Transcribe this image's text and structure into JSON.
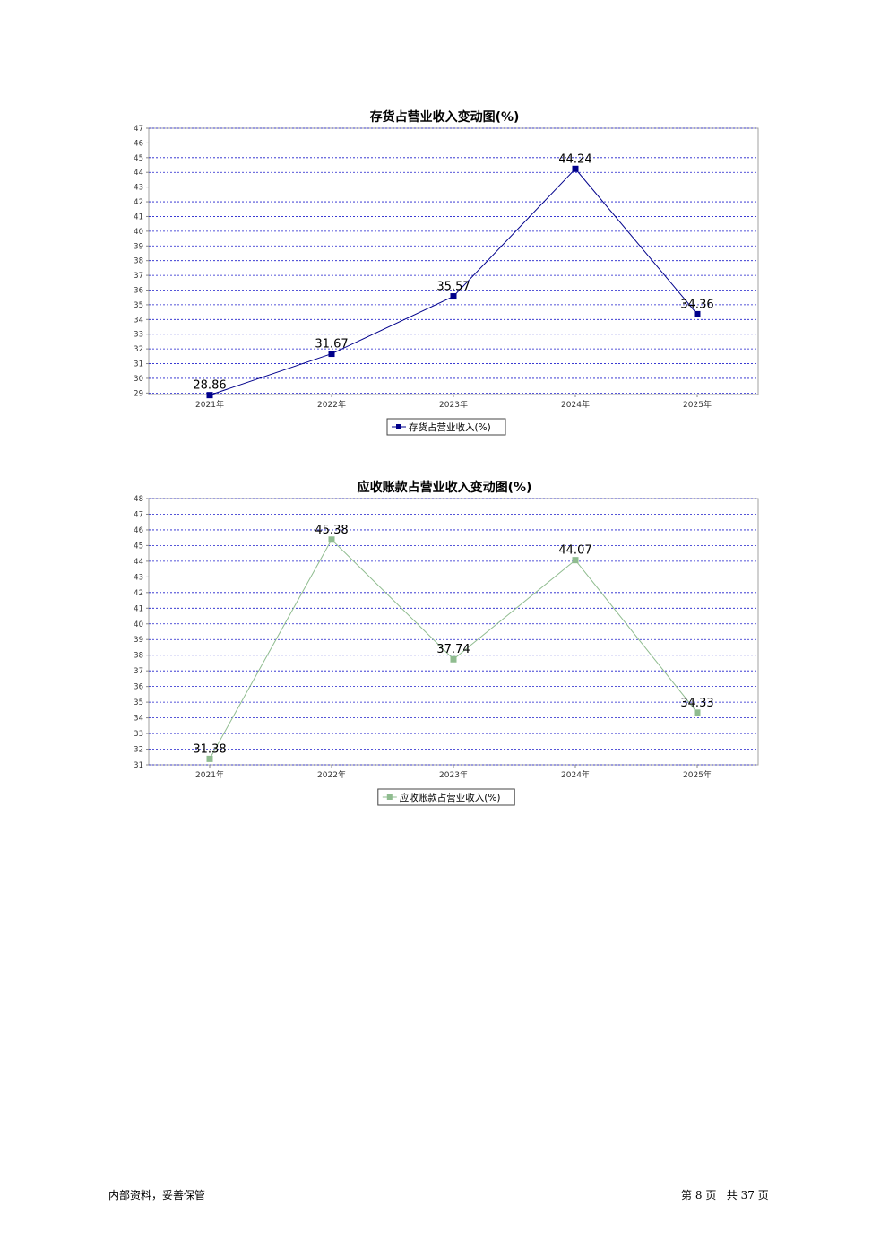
{
  "chart_data": [
    {
      "type": "line",
      "title": "存货占营业收入变动图(%)",
      "categories": [
        "2021年",
        "2022年",
        "2023年",
        "2024年",
        "2025年"
      ],
      "series": [
        {
          "name": "存货占营业收入(%)",
          "values": [
            28.86,
            31.67,
            35.57,
            44.24,
            34.36
          ],
          "color": "#00008b"
        }
      ],
      "value_labels": [
        "28.86",
        "31.67",
        "35.57",
        "44.24",
        "34.36"
      ],
      "yticks": [
        "29",
        "30",
        "31",
        "32",
        "33",
        "34",
        "35",
        "36",
        "37",
        "38",
        "39",
        "40",
        "41",
        "42",
        "43",
        "44",
        "45",
        "46",
        "47"
      ],
      "ylim": [
        28.9,
        47
      ],
      "grid": true,
      "legend": "bottom-center",
      "xlabel": "",
      "ylabel": ""
    },
    {
      "type": "line",
      "title": "应收账款占营业收入变动图(%)",
      "categories": [
        "2021年",
        "2022年",
        "2023年",
        "2024年",
        "2025年"
      ],
      "series": [
        {
          "name": "应收账款占营业收入(%)",
          "values": [
            31.38,
            45.38,
            37.74,
            44.07,
            34.33
          ],
          "color": "#8fbc8f"
        }
      ],
      "value_labels": [
        "31.38",
        "45.38",
        "37.74",
        "44.07",
        "34.33"
      ],
      "yticks": [
        "31",
        "32",
        "33",
        "34",
        "35",
        "36",
        "37",
        "38",
        "39",
        "40",
        "41",
        "42",
        "43",
        "44",
        "45",
        "46",
        "47",
        "48"
      ],
      "ylim": [
        31,
        48
      ],
      "grid": true,
      "legend": "bottom-center",
      "xlabel": "",
      "ylabel": ""
    }
  ],
  "footer": {
    "left": "内部资料，妥善保管",
    "page_prefix": "第",
    "page_num": "8",
    "page_unit": "页",
    "total_prefix": "共",
    "total_num": "37",
    "total_unit": "页"
  }
}
